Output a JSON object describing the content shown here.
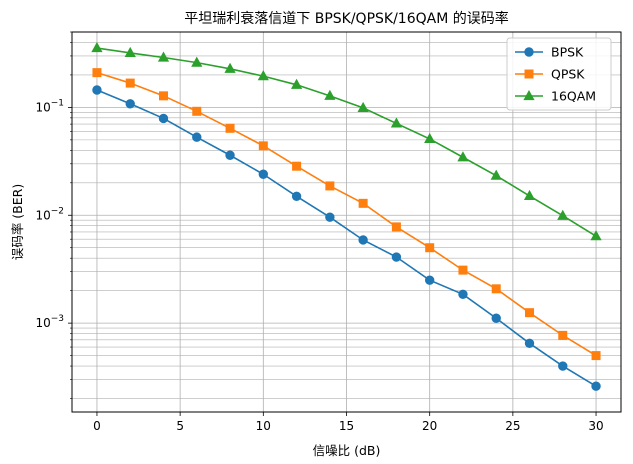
{
  "chart_data": {
    "type": "line",
    "title": "平坦瑞利衰落信道下 BPSK/QPSK/16QAM 的误码率",
    "xlabel": "信噪比 (dB)",
    "ylabel": "误码率 (BER)",
    "yscale": "log",
    "xlim": [
      -1.5,
      31.5
    ],
    "ylim": [
      0.00015,
      0.5
    ],
    "xticks": [
      0,
      5,
      10,
      15,
      20,
      25,
      30
    ],
    "yticks": [
      {
        "value": 0.1,
        "base": "10",
        "exp": "−1"
      },
      {
        "value": 0.01,
        "base": "10",
        "exp": "−2"
      },
      {
        "value": 0.001,
        "base": "10",
        "exp": "−3"
      }
    ],
    "grid": true,
    "legend_position": "top-right",
    "x": [
      0,
      2,
      4,
      6,
      8,
      10,
      12,
      14,
      16,
      18,
      20,
      22,
      24,
      26,
      28,
      30
    ],
    "series": [
      {
        "name": "BPSK",
        "color": "#1f77b4",
        "marker": "circle",
        "values": [
          0.145,
          0.108,
          0.079,
          0.053,
          0.036,
          0.024,
          0.015,
          0.0096,
          0.0059,
          0.0041,
          0.0025,
          0.00185,
          0.00111,
          0.00065,
          0.0004,
          0.00026
        ]
      },
      {
        "name": "QPSK",
        "color": "#ff7f0e",
        "marker": "square",
        "values": [
          0.21,
          0.168,
          0.128,
          0.092,
          0.064,
          0.044,
          0.0285,
          0.0187,
          0.0129,
          0.0078,
          0.005,
          0.0031,
          0.00208,
          0.00125,
          0.00077,
          0.0005
        ]
      },
      {
        "name": "16QAM",
        "color": "#2ca02c",
        "marker": "triangle",
        "values": [
          0.355,
          0.32,
          0.29,
          0.26,
          0.228,
          0.195,
          0.162,
          0.128,
          0.099,
          0.071,
          0.051,
          0.0345,
          0.0233,
          0.0151,
          0.0099,
          0.0064
        ]
      }
    ]
  }
}
